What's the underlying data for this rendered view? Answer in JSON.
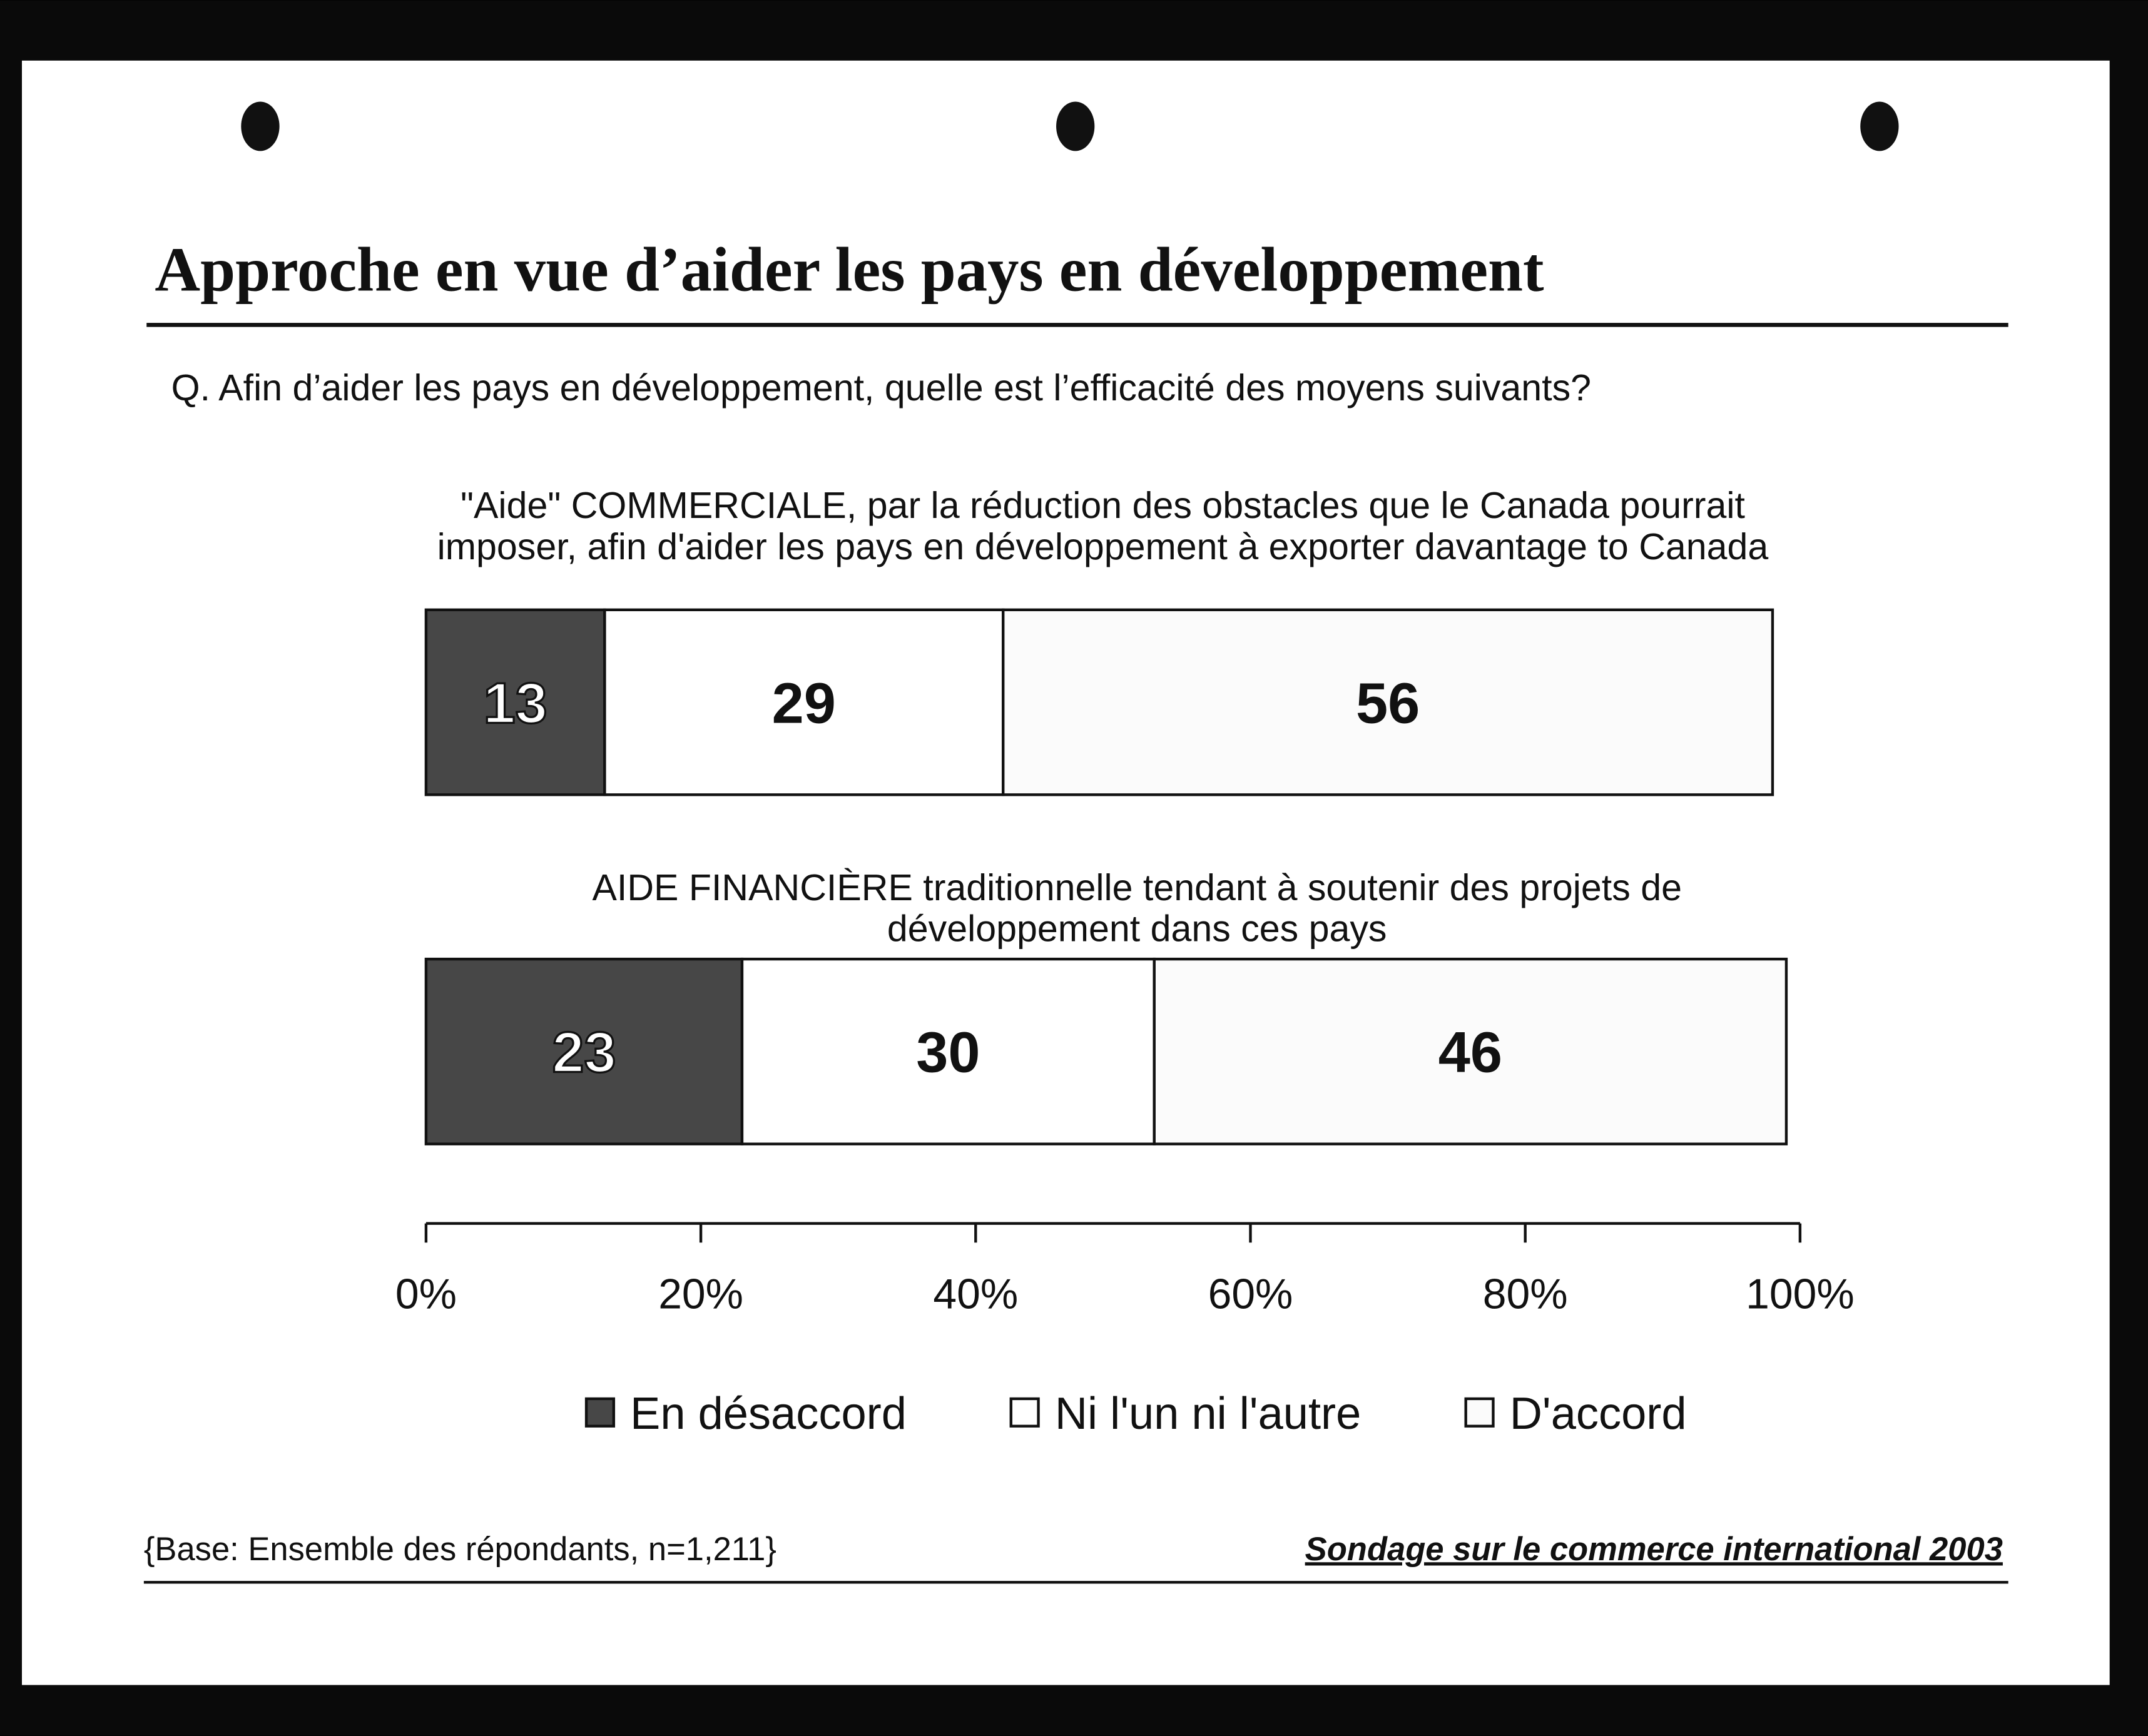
{
  "chart_data": {
    "type": "stacked-bar-horizontal",
    "title": "Approche en vue d’aider les pays en développement",
    "subtitle": "Q. Afin d’aider les pays en développement, quelle est l’efficacité des moyens suivants?",
    "categories": [
      "\"Aide\" COMMERCIALE, par la réduction des obstacles que le Canada pourrait imposer, afin d'aider les pays en développement à exporter davantage to Canada",
      "AIDE FINANCIÈRE traditionnelle tendant à soutenir des projets de développement dans ces pays"
    ],
    "series": [
      {
        "name": "En désaccord",
        "color": "#474747",
        "values": [
          13,
          23
        ]
      },
      {
        "name": "Ni l'un ni l'autre",
        "color": "#ffffff",
        "values": [
          29,
          30
        ]
      },
      {
        "name": "D'accord",
        "color": "#fbfbfb",
        "values": [
          56,
          46
        ]
      }
    ],
    "xlim": [
      0,
      100
    ],
    "xticks": [
      {
        "value": 0,
        "label": "0%"
      },
      {
        "value": 20,
        "label": "20%"
      },
      {
        "value": 40,
        "label": "40%"
      },
      {
        "value": 60,
        "label": "60%"
      },
      {
        "value": 80,
        "label": "80%"
      },
      {
        "value": 100,
        "label": "100%"
      }
    ],
    "footnote": "{Base: Ensemble des répondants, n=1,211}",
    "source": "Sondage sur le commerce international 2003"
  }
}
